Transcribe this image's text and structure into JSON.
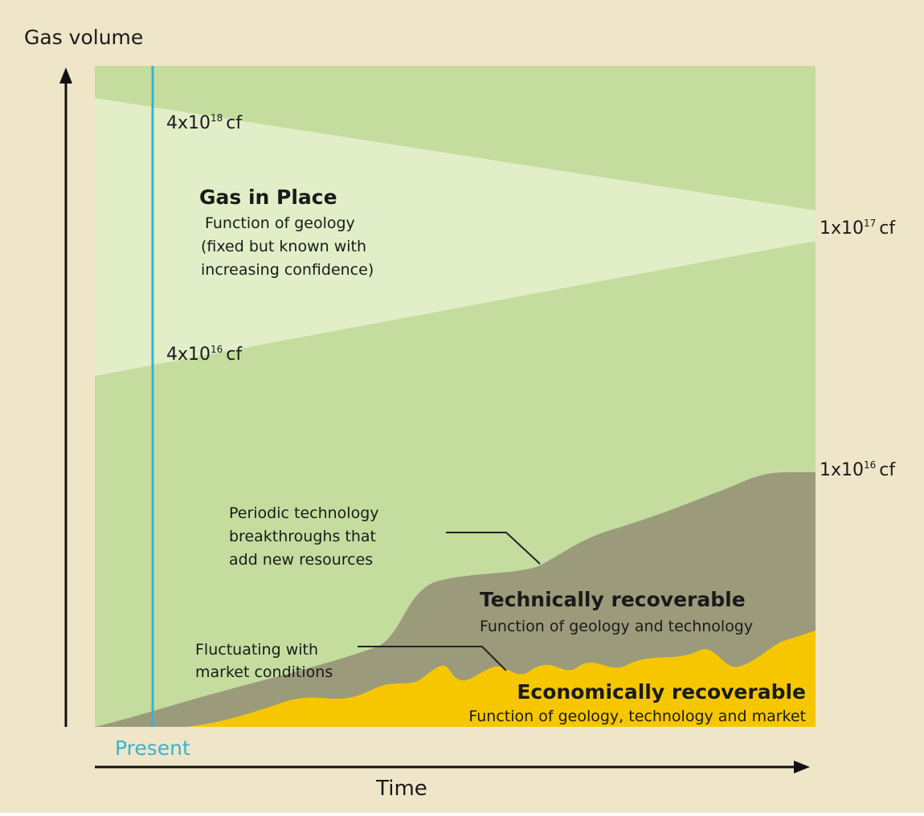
{
  "axes": {
    "y_label": "Gas volume",
    "x_label": "Time",
    "present": "Present"
  },
  "markers": [
    {
      "base": "4x10",
      "exp": "18",
      "unit": "cf"
    },
    {
      "base": "4x10",
      "exp": "16",
      "unit": "cf"
    },
    {
      "base": "1x10",
      "exp": "17",
      "unit": "cf"
    },
    {
      "base": "1x10",
      "exp": "16",
      "unit": "cf"
    }
  ],
  "gas_in_place": {
    "title": "Gas in Place",
    "lines": [
      "Function of geology",
      "(fixed but known with",
      "increasing confidence)"
    ]
  },
  "breakthroughs": {
    "lines": [
      "Periodic technology",
      "breakthroughs that",
      "add new resources"
    ]
  },
  "technically": {
    "title": "Technically recoverable",
    "subtitle": "Function of geology and technology"
  },
  "fluctuating": {
    "lines": [
      "Fluctuating with",
      "market conditions"
    ]
  },
  "economically": {
    "title": "Economically recoverable",
    "subtitle": "Function of geology, technology and market"
  }
}
